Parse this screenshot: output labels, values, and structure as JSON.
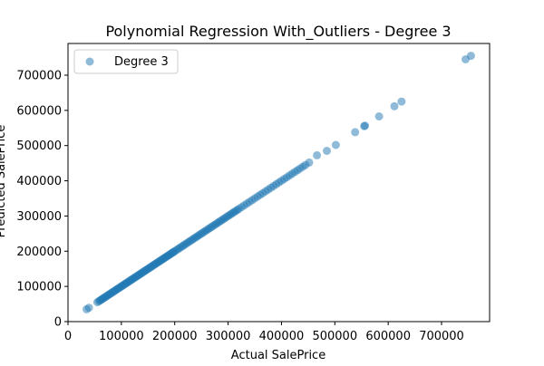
{
  "chart_data": {
    "type": "scatter",
    "title": "Polynomial Regression With_Outliers - Degree 3",
    "xlabel": "Actual SalePrice",
    "ylabel": "Predicted SalePrice",
    "xlim": [
      0,
      790000
    ],
    "ylim": [
      0,
      790000
    ],
    "xticks": [
      0,
      100000,
      200000,
      300000,
      400000,
      500000,
      600000,
      700000
    ],
    "yticks": [
      0,
      100000,
      200000,
      300000,
      400000,
      500000,
      600000,
      700000
    ],
    "grid": false,
    "legend": {
      "position": "top-left",
      "entries": [
        "Degree 3"
      ]
    },
    "series": [
      {
        "name": "Degree 3",
        "color": "#1f77b4",
        "points": [
          [
            34900,
            34900
          ],
          [
            39300,
            39300
          ],
          [
            55000,
            55000
          ],
          [
            58000,
            58000
          ],
          [
            60000,
            60000
          ],
          [
            62000,
            62000
          ],
          [
            64000,
            64000
          ],
          [
            66000,
            66000
          ],
          [
            68000,
            68000
          ],
          [
            70000,
            70000
          ],
          [
            72000,
            72000
          ],
          [
            74000,
            74000
          ],
          [
            76000,
            76000
          ],
          [
            78000,
            78000
          ],
          [
            80000,
            80000
          ],
          [
            82000,
            82000
          ],
          [
            84000,
            84000
          ],
          [
            86000,
            86000
          ],
          [
            88000,
            88000
          ],
          [
            90000,
            90000
          ],
          [
            92000,
            92000
          ],
          [
            94000,
            94000
          ],
          [
            96000,
            96000
          ],
          [
            98000,
            98000
          ],
          [
            100000,
            100000
          ],
          [
            102000,
            102000
          ],
          [
            104000,
            104000
          ],
          [
            106000,
            106000
          ],
          [
            108000,
            108000
          ],
          [
            110000,
            110000
          ],
          [
            112000,
            112000
          ],
          [
            114000,
            114000
          ],
          [
            116000,
            116000
          ],
          [
            118000,
            118000
          ],
          [
            120000,
            120000
          ],
          [
            122000,
            122000
          ],
          [
            124000,
            124000
          ],
          [
            126000,
            126000
          ],
          [
            128000,
            128000
          ],
          [
            130000,
            130000
          ],
          [
            132000,
            132000
          ],
          [
            134000,
            134000
          ],
          [
            136000,
            136000
          ],
          [
            138000,
            138000
          ],
          [
            140000,
            140000
          ],
          [
            142000,
            142000
          ],
          [
            144000,
            144000
          ],
          [
            146000,
            146000
          ],
          [
            148000,
            148000
          ],
          [
            150000,
            150000
          ],
          [
            152000,
            152000
          ],
          [
            154000,
            154000
          ],
          [
            156000,
            156000
          ],
          [
            158000,
            158000
          ],
          [
            160000,
            160000
          ],
          [
            162000,
            162000
          ],
          [
            164000,
            164000
          ],
          [
            166000,
            166000
          ],
          [
            168000,
            168000
          ],
          [
            170000,
            170000
          ],
          [
            172000,
            172000
          ],
          [
            174000,
            174000
          ],
          [
            176000,
            176000
          ],
          [
            178000,
            178000
          ],
          [
            180000,
            180000
          ],
          [
            182000,
            182000
          ],
          [
            184000,
            184000
          ],
          [
            186000,
            186000
          ],
          [
            188000,
            188000
          ],
          [
            190000,
            190000
          ],
          [
            192000,
            192000
          ],
          [
            194000,
            194000
          ],
          [
            196000,
            196000
          ],
          [
            198000,
            198000
          ],
          [
            200000,
            200000
          ],
          [
            203000,
            203000
          ],
          [
            206000,
            206000
          ],
          [
            209000,
            209000
          ],
          [
            212000,
            212000
          ],
          [
            215000,
            215000
          ],
          [
            218000,
            218000
          ],
          [
            221000,
            221000
          ],
          [
            224000,
            224000
          ],
          [
            227000,
            227000
          ],
          [
            230000,
            230000
          ],
          [
            233000,
            233000
          ],
          [
            236000,
            236000
          ],
          [
            239000,
            239000
          ],
          [
            242000,
            242000
          ],
          [
            245000,
            245000
          ],
          [
            248000,
            248000
          ],
          [
            251000,
            251000
          ],
          [
            254000,
            254000
          ],
          [
            257000,
            257000
          ],
          [
            260000,
            260000
          ],
          [
            263000,
            263000
          ],
          [
            266000,
            266000
          ],
          [
            269000,
            269000
          ],
          [
            272000,
            272000
          ],
          [
            275000,
            275000
          ],
          [
            278000,
            278000
          ],
          [
            281000,
            281000
          ],
          [
            284000,
            284000
          ],
          [
            287000,
            287000
          ],
          [
            290000,
            290000
          ],
          [
            293000,
            293000
          ],
          [
            296000,
            296000
          ],
          [
            299000,
            299000
          ],
          [
            302000,
            302000
          ],
          [
            305000,
            305000
          ],
          [
            308000,
            308000
          ],
          [
            311000,
            311000
          ],
          [
            314000,
            314000
          ],
          [
            317000,
            317000
          ],
          [
            320000,
            320000
          ],
          [
            325000,
            325000
          ],
          [
            330000,
            330000
          ],
          [
            335000,
            335000
          ],
          [
            340000,
            340000
          ],
          [
            345000,
            345000
          ],
          [
            350000,
            350000
          ],
          [
            355000,
            355000
          ],
          [
            360000,
            360000
          ],
          [
            365000,
            365000
          ],
          [
            370000,
            370000
          ],
          [
            375000,
            375000
          ],
          [
            380000,
            380000
          ],
          [
            385000,
            385000
          ],
          [
            390000,
            390000
          ],
          [
            395000,
            395000
          ],
          [
            400000,
            400000
          ],
          [
            405000,
            405000
          ],
          [
            410000,
            410000
          ],
          [
            415000,
            415000
          ],
          [
            420000,
            420000
          ],
          [
            425000,
            425000
          ],
          [
            430000,
            430000
          ],
          [
            435000,
            435000
          ],
          [
            440000,
            440000
          ],
          [
            445000,
            445000
          ],
          [
            451950,
            451950
          ],
          [
            466500,
            472500
          ],
          [
            485000,
            485000
          ],
          [
            501837,
            501837
          ],
          [
            538000,
            538000
          ],
          [
            555000,
            555000
          ],
          [
            556581,
            556581
          ],
          [
            582933,
            582933
          ],
          [
            611657,
            611657
          ],
          [
            625000,
            625000
          ],
          [
            745000,
            745000
          ],
          [
            755000,
            755000
          ]
        ]
      }
    ]
  }
}
